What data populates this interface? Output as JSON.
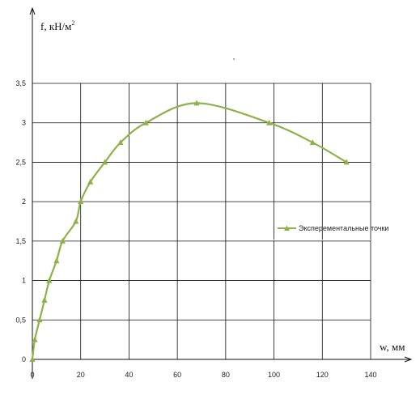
{
  "chart_data": {
    "type": "line",
    "title": "",
    "ylabel": "f, кН/м",
    "ylabel_superscript": "2",
    "xlabel": "w, мм",
    "xlim": [
      0,
      140
    ],
    "ylim": [
      0,
      3.5
    ],
    "x_ticks": [
      0,
      20,
      40,
      60,
      80,
      100,
      120,
      140
    ],
    "y_ticks": [
      0,
      0.5,
      1,
      1.5,
      2,
      2.5,
      3,
      3.5
    ],
    "x_tick_labels": [
      "0",
      "20",
      "40",
      "60",
      "80",
      "100",
      "120",
      "140"
    ],
    "y_tick_labels": [
      "0",
      "0,5",
      "1",
      "1,5",
      "2",
      "2,5",
      "3",
      "3,5"
    ],
    "grid": true,
    "legend_position": "right",
    "series": [
      {
        "name": "Эксперементальные точки",
        "color": "#8db24a",
        "marker": "triangle",
        "smooth": true,
        "points": [
          {
            "x": 0,
            "y": 0
          },
          {
            "x": 1,
            "y": 0.25
          },
          {
            "x": 3,
            "y": 0.5
          },
          {
            "x": 5,
            "y": 0.75
          },
          {
            "x": 7,
            "y": 1
          },
          {
            "x": 10,
            "y": 1.25
          },
          {
            "x": 12.5,
            "y": 1.5
          },
          {
            "x": 18,
            "y": 1.75
          },
          {
            "x": 20,
            "y": 2
          },
          {
            "x": 24,
            "y": 2.25
          },
          {
            "x": 30,
            "y": 2.5
          },
          {
            "x": 36.5,
            "y": 2.75
          },
          {
            "x": 47,
            "y": 3
          },
          {
            "x": 68,
            "y": 3.25
          },
          {
            "x": 98,
            "y": 3
          },
          {
            "x": 116,
            "y": 2.75
          },
          {
            "x": 130,
            "y": 2.5
          }
        ]
      }
    ]
  }
}
